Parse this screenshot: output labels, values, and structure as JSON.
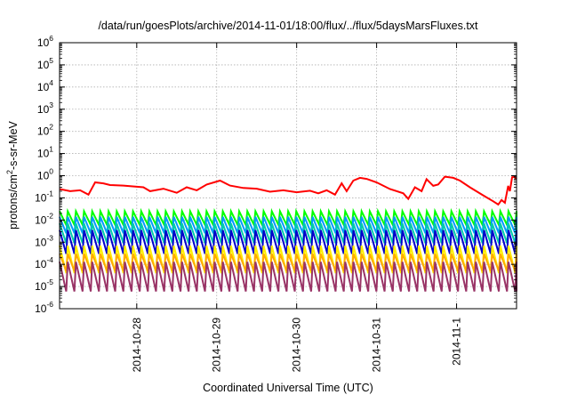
{
  "chart_data": {
    "type": "line",
    "title": "/data/run/goesPlots/archive/2014-11-01/18:00/flux/../flux/5daysMarsFluxes.txt",
    "xlabel": "Coordinated Universal Time (UTC)",
    "ylabel": {
      "pre": "protons/cm",
      "sup": "2",
      "post": "-s-sr-MeV"
    },
    "y_scale": "log",
    "ylim_exp": [
      -6,
      6
    ],
    "yticks_exp": [
      -6,
      -5,
      -4,
      -3,
      -2,
      -1,
      0,
      1,
      2,
      3,
      4,
      5,
      6
    ],
    "xlim": [
      "2014-10-27 00:50",
      "2014-11-01 18:00"
    ],
    "xticks": [
      {
        "label": "2014-10-28",
        "t": "2014-10-28 00:00"
      },
      {
        "label": "2014-10-29",
        "t": "2014-10-29 00:00"
      },
      {
        "label": "2014-10-30",
        "t": "2014-10-30 00:00"
      },
      {
        "label": "2014-10-31",
        "t": "2014-10-31 00:00"
      },
      {
        "label": "2014-11-1",
        "t": "2014-11-01 00:00"
      }
    ],
    "grid": true,
    "legend": "none",
    "pattern": {
      "start": "2014-10-27 00:50",
      "period_hours": 2.45,
      "cycles": 56
    },
    "series": [
      {
        "color": "#ff0000",
        "kind": "trend",
        "points": [
          [
            "2014-10-27 00:50",
            0.25
          ],
          [
            "2014-10-27 04:00",
            0.2
          ],
          [
            "2014-10-27 07:00",
            0.22
          ],
          [
            "2014-10-27 09:30",
            0.14
          ],
          [
            "2014-10-27 11:30",
            0.5
          ],
          [
            "2014-10-27 14:00",
            0.45
          ],
          [
            "2014-10-27 16:00",
            0.38
          ],
          [
            "2014-10-27 20:00",
            0.36
          ],
          [
            "2014-10-28 02:00",
            0.3
          ],
          [
            "2014-10-28 04:00",
            0.2
          ],
          [
            "2014-10-28 08:00",
            0.26
          ],
          [
            "2014-10-28 12:00",
            0.17
          ],
          [
            "2014-10-28 15:00",
            0.3
          ],
          [
            "2014-10-28 18:00",
            0.22
          ],
          [
            "2014-10-28 21:00",
            0.4
          ],
          [
            "2014-10-29 01:00",
            0.6
          ],
          [
            "2014-10-29 04:00",
            0.36
          ],
          [
            "2014-10-29 08:00",
            0.28
          ],
          [
            "2014-10-29 12:00",
            0.26
          ],
          [
            "2014-10-29 16:00",
            0.19
          ],
          [
            "2014-10-29 20:00",
            0.22
          ],
          [
            "2014-10-30 00:00",
            0.18
          ],
          [
            "2014-10-30 04:00",
            0.21
          ],
          [
            "2014-10-30 06:30",
            0.16
          ],
          [
            "2014-10-30 09:00",
            0.22
          ],
          [
            "2014-10-30 11:30",
            0.14
          ],
          [
            "2014-10-30 13:30",
            0.45
          ],
          [
            "2014-10-30 15:00",
            0.2
          ],
          [
            "2014-10-30 17:00",
            0.6
          ],
          [
            "2014-10-30 19:00",
            0.8
          ],
          [
            "2014-10-30 21:00",
            0.72
          ],
          [
            "2014-10-31 00:00",
            0.5
          ],
          [
            "2014-10-31 04:00",
            0.25
          ],
          [
            "2014-10-31 08:00",
            0.16
          ],
          [
            "2014-10-31 09:30",
            0.09
          ],
          [
            "2014-10-31 11:30",
            0.3
          ],
          [
            "2014-10-31 13:30",
            0.2
          ],
          [
            "2014-10-31 15:00",
            0.7
          ],
          [
            "2014-10-31 17:00",
            0.35
          ],
          [
            "2014-10-31 18:30",
            0.4
          ],
          [
            "2014-10-31 20:30",
            0.9
          ],
          [
            "2014-10-31 23:00",
            0.8
          ],
          [
            "2014-11-01 01:00",
            0.6
          ],
          [
            "2014-11-01 04:00",
            0.3
          ],
          [
            "2014-11-01 08:00",
            0.13
          ],
          [
            "2014-11-01 11:00",
            0.07
          ],
          [
            "2014-11-01 12:30",
            0.05
          ],
          [
            "2014-11-01 13:30",
            0.08
          ],
          [
            "2014-11-01 14:30",
            0.06
          ],
          [
            "2014-11-01 15:30",
            0.35
          ],
          [
            "2014-11-01 16:00",
            0.2
          ],
          [
            "2014-11-01 16:40",
            0.85
          ],
          [
            "2014-11-01 17:20",
            0.9
          ],
          [
            "2014-11-01 18:00",
            0.7
          ]
        ]
      },
      {
        "color": "#00ff00",
        "kind": "saw",
        "peak": 0.025,
        "trough": 0.006
      },
      {
        "color": "#0099ff",
        "kind": "saw",
        "peak": 0.014,
        "trough": 0.0025
      },
      {
        "color": "#00ccaa",
        "kind": "saw",
        "peak": 0.007,
        "trough": 0.0009
      },
      {
        "color": "#0000cc",
        "kind": "saw",
        "peak": 0.0035,
        "trough": 0.0003
      },
      {
        "color": "#ffee00",
        "kind": "saw",
        "peak": 0.0007,
        "trough": 4e-05
      },
      {
        "color": "#ffaa00",
        "kind": "saw",
        "peak": 0.0003,
        "trough": 5e-05
      },
      {
        "color": "#993366",
        "kind": "saw",
        "peak": 0.00013,
        "trough": 6e-06
      }
    ]
  }
}
